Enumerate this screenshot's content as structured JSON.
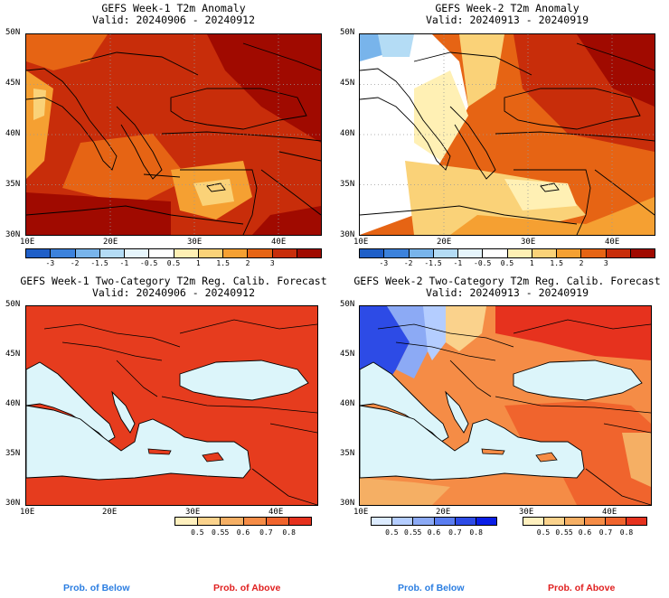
{
  "panels": [
    {
      "title": "GEFS Week-1 T2m Anomaly",
      "valid": "Valid: 20240906 - 20240912"
    },
    {
      "title": "GEFS Week-2 T2m Anomaly",
      "valid": "Valid: 20240913 - 20240919"
    },
    {
      "title": "GEFS Week-1 Two-Category T2m Reg. Calib. Forecast",
      "valid": "Valid: 20240906 - 20240912"
    },
    {
      "title": "GEFS Week-2 Two-Category T2m Reg. Calib. Forecast",
      "valid": "Valid: 20240913 - 20240919"
    }
  ],
  "lat_labels": [
    "50N",
    "45N",
    "40N",
    "35N",
    "30N"
  ],
  "lon_labels": [
    "10E",
    "20E",
    "30E",
    "40E"
  ],
  "anomaly_scale": {
    "labels": [
      "-3",
      "-2",
      "-1.5",
      "-1",
      "-0.5",
      "0.5",
      "1",
      "1.5",
      "2",
      "3"
    ],
    "colors": [
      "#1f5fc8",
      "#3c82dc",
      "#78b4eb",
      "#b4dcf5",
      "#e6f5fc",
      "#ffffff",
      "#fff0b4",
      "#fad278",
      "#f5a032",
      "#e66414",
      "#c82d0a",
      "#a00a00"
    ]
  },
  "prob_below_scale": {
    "labels": [
      "0.5",
      "0.55",
      "0.6",
      "0.7",
      "0.8"
    ],
    "colors": [
      "#dcebff",
      "#b4cdff",
      "#8caaf5",
      "#5a7df0",
      "#2d4be6",
      "#0a1ee6"
    ]
  },
  "prob_above_scale": {
    "labels": [
      "0.5",
      "0.55",
      "0.6",
      "0.7",
      "0.8"
    ],
    "colors": [
      "#fff0be",
      "#fad28c",
      "#f5af64",
      "#f58c46",
      "#f0642d",
      "#e6321e"
    ]
  },
  "colors": {
    "sea": "#dcf5fa",
    "land_above": "#e63c1e",
    "coast": "#000000"
  },
  "prob_of_below": "Prob. of Below",
  "prob_of_above": "Prob. of Above",
  "prob_below_color": "#2a7de1",
  "prob_above_color": "#e02020"
}
